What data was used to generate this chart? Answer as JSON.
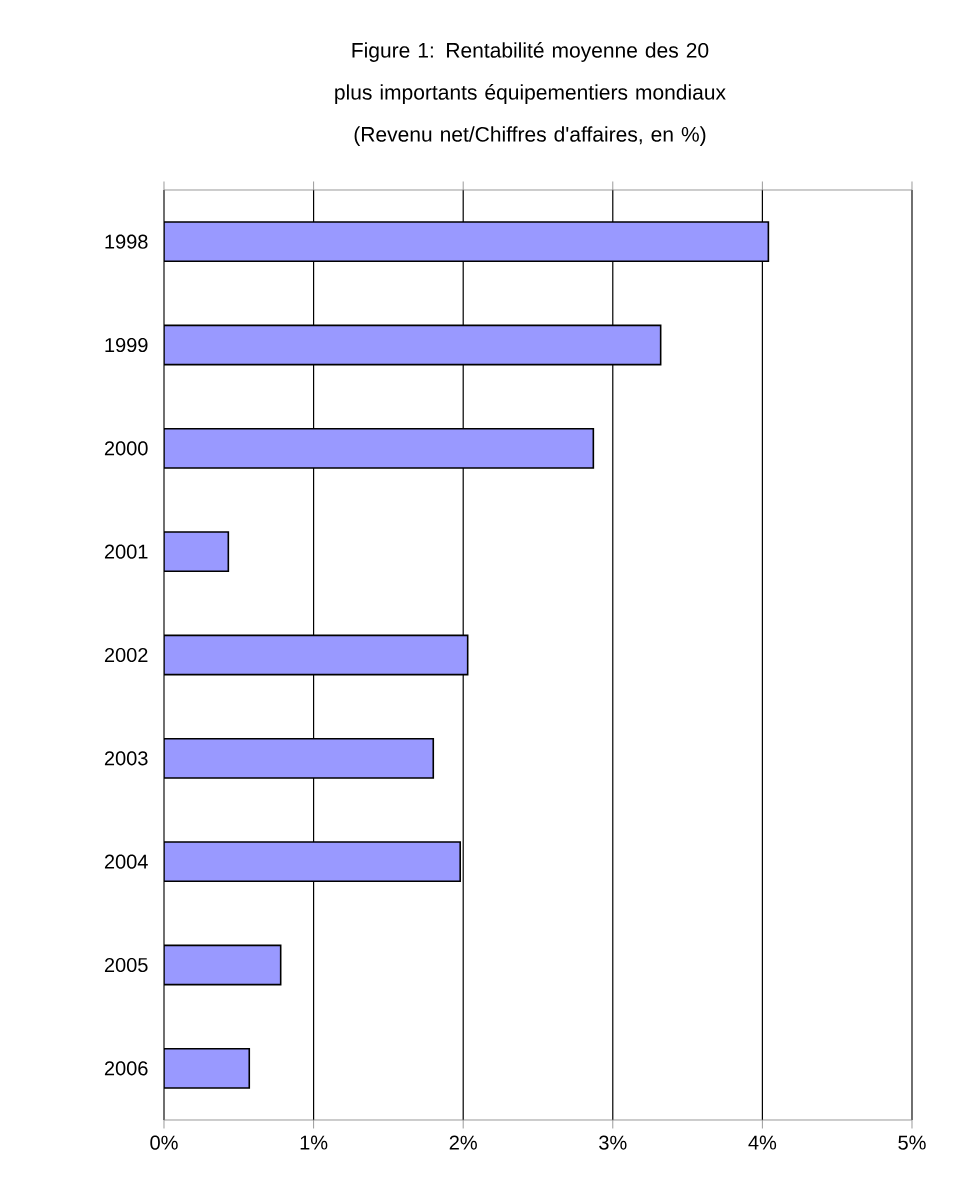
{
  "chart_data": {
    "type": "bar",
    "orientation": "horizontal",
    "title": "Figure 1: Rentabilité moyenne des 20 plus importants équipementiers mondiaux (Revenu net/Chiffres d'affaires, en %)",
    "categories": [
      "1998",
      "1999",
      "2000",
      "2001",
      "2002",
      "2003",
      "2004",
      "2005",
      "2006"
    ],
    "values": [
      4.04,
      3.32,
      2.87,
      0.43,
      2.03,
      1.8,
      1.98,
      0.78,
      0.57
    ],
    "color": "#9999ff",
    "xlim": [
      0,
      5
    ],
    "xticks": [
      {
        "value": 0,
        "label": "0%"
      },
      {
        "value": 1,
        "label": "1%"
      },
      {
        "value": 2,
        "label": "2%"
      },
      {
        "value": 3,
        "label": "3%"
      },
      {
        "value": 4,
        "label": "4%"
      },
      {
        "value": 5,
        "label": "5%"
      }
    ],
    "grid": "x"
  }
}
